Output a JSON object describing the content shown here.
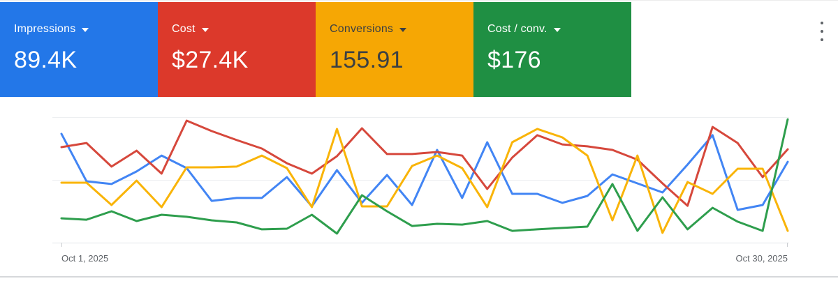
{
  "scorecards": [
    {
      "label": "Impressions",
      "value": "89.4K",
      "bg_color": "#2377e8",
      "text_color": "#ffffff"
    },
    {
      "label": "Cost",
      "value": "$27.4K",
      "bg_color": "#dc392b",
      "text_color": "#ffffff"
    },
    {
      "label": "Conversions",
      "value": "155.91",
      "bg_color": "#f6a704",
      "text_color": "#3c4043"
    },
    {
      "label": "Cost / conv.",
      "value": "$176",
      "bg_color": "#1f8f43",
      "text_color": "#ffffff"
    }
  ],
  "overflow_menu": {
    "icon": "kebab-vertical",
    "color": "#5f6368"
  },
  "chart_data": {
    "type": "line",
    "title": "",
    "xlabel": "",
    "ylabel": "",
    "x_axis": {
      "start_label": "Oct 1, 2025",
      "end_label": "Oct 30, 2025",
      "num_points": 30
    },
    "y_axis": {
      "tick_labels_visible": false,
      "gridlines": 3,
      "ylim": [
        0,
        100
      ],
      "units": "percent-of-plot-height"
    },
    "legend_position": "none",
    "series": [
      {
        "name": "Impressions",
        "color": "#4285f4",
        "values": [
          86.7,
          48.9,
          46.7,
          56.7,
          69.4,
          59.4,
          33.3,
          35.6,
          35.6,
          52.2,
          28.9,
          57.8,
          31.7,
          53.9,
          30,
          73.9,
          35.6,
          80,
          38.9,
          38.9,
          31.7,
          37.2,
          54.4,
          47.2,
          40,
          62.2,
          85.6,
          26.1,
          30,
          64.4
        ]
      },
      {
        "name": "Cost",
        "color": "#d6483c",
        "values": [
          76.1,
          79.4,
          60.6,
          73.3,
          55,
          97.2,
          88.9,
          81.7,
          75,
          63.3,
          55,
          68.9,
          91.1,
          70.6,
          70.6,
          72.2,
          69.4,
          42.8,
          67.8,
          85.6,
          78.3,
          76.7,
          73.9,
          66.1,
          47.2,
          29.4,
          92.2,
          79.4,
          52.2,
          74.4
        ]
      },
      {
        "name": "Conversions",
        "color": "#f9b408",
        "values": [
          47.8,
          47.8,
          30,
          49.4,
          28.3,
          60,
          60,
          60.6,
          69.4,
          59.4,
          28.3,
          90.6,
          28.9,
          28.9,
          61.1,
          69.4,
          59.4,
          28.3,
          80,
          90.6,
          83.9,
          69.4,
          17.8,
          69.4,
          7.8,
          48.3,
          38.9,
          58.9,
          58.9,
          9.4
        ]
      },
      {
        "name": "Cost / conv.",
        "color": "#2e9e4d",
        "values": [
          19.4,
          18.3,
          25,
          17.2,
          22.2,
          20.6,
          17.8,
          16.1,
          10.6,
          11.1,
          22.2,
          7.2,
          37.8,
          25,
          13.3,
          15,
          14.4,
          17.2,
          9.4,
          10.6,
          11.7,
          12.8,
          46.7,
          9.4,
          36.1,
          10.6,
          27.8,
          16.7,
          9.4,
          98.3
        ]
      }
    ]
  }
}
